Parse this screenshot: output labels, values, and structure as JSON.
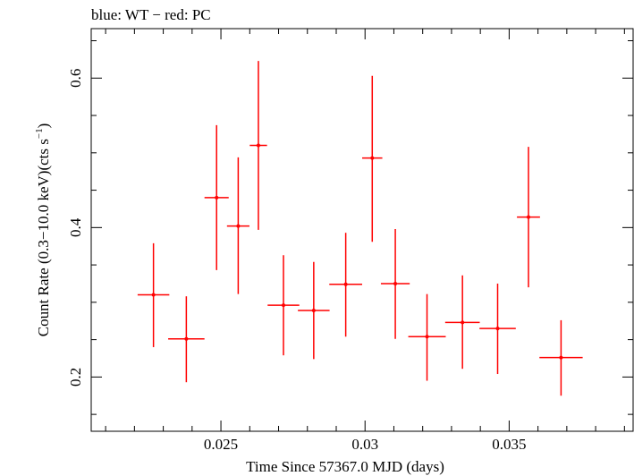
{
  "chart_data": {
    "type": "scatter",
    "title": "blue: WT − red: PC",
    "xlabel": "Time Since 57367.0 MJD (days)",
    "ylabel_main": "Count Rate (0.3−10.0 keV)(cts s",
    "ylabel_sup": "−1",
    "ylabel_close": ")",
    "xlim": [
      0.0205,
      0.0393
    ],
    "ylim": [
      0.1274,
      0.6662
    ],
    "grid": false,
    "xticks": [
      0.025,
      0.03,
      0.035
    ],
    "xtick_labels": [
      "0.025",
      "0.03",
      "0.035"
    ],
    "yticks": [
      0.2,
      0.4,
      0.6
    ],
    "ytick_labels": [
      "0.2",
      "0.4",
      "0.6"
    ],
    "series": [
      {
        "color": "#ff0000",
        "points": [
          {
            "x": 0.02266,
            "xerr": 0.00055,
            "y": 0.31,
            "ylo": 0.24,
            "yhi": 0.379
          },
          {
            "x": 0.0238,
            "xerr": 0.00063,
            "y": 0.251,
            "ylo": 0.193,
            "yhi": 0.308
          },
          {
            "x": 0.02485,
            "xerr": 0.00042,
            "y": 0.44,
            "ylo": 0.343,
            "yhi": 0.537
          },
          {
            "x": 0.0256,
            "xerr": 0.00039,
            "y": 0.402,
            "ylo": 0.311,
            "yhi": 0.494
          },
          {
            "x": 0.0263,
            "xerr": 0.0003,
            "y": 0.51,
            "ylo": 0.397,
            "yhi": 0.623
          },
          {
            "x": 0.02717,
            "xerr": 0.00055,
            "y": 0.296,
            "ylo": 0.229,
            "yhi": 0.363
          },
          {
            "x": 0.02822,
            "xerr": 0.00055,
            "y": 0.289,
            "ylo": 0.224,
            "yhi": 0.354
          },
          {
            "x": 0.02933,
            "xerr": 0.00057,
            "y": 0.324,
            "ylo": 0.254,
            "yhi": 0.393
          },
          {
            "x": 0.03025,
            "xerr": 0.00035,
            "y": 0.493,
            "ylo": 0.381,
            "yhi": 0.603
          },
          {
            "x": 0.03105,
            "xerr": 0.0005,
            "y": 0.325,
            "ylo": 0.251,
            "yhi": 0.398
          },
          {
            "x": 0.03215,
            "xerr": 0.00065,
            "y": 0.254,
            "ylo": 0.195,
            "yhi": 0.311
          },
          {
            "x": 0.03338,
            "xerr": 0.0006,
            "y": 0.273,
            "ylo": 0.211,
            "yhi": 0.336
          },
          {
            "x": 0.0346,
            "xerr": 0.00063,
            "y": 0.265,
            "ylo": 0.204,
            "yhi": 0.325
          },
          {
            "x": 0.03567,
            "xerr": 0.0004,
            "y": 0.414,
            "ylo": 0.32,
            "yhi": 0.508
          },
          {
            "x": 0.0368,
            "xerr": 0.00075,
            "y": 0.226,
            "ylo": 0.175,
            "yhi": 0.276
          }
        ]
      }
    ]
  }
}
